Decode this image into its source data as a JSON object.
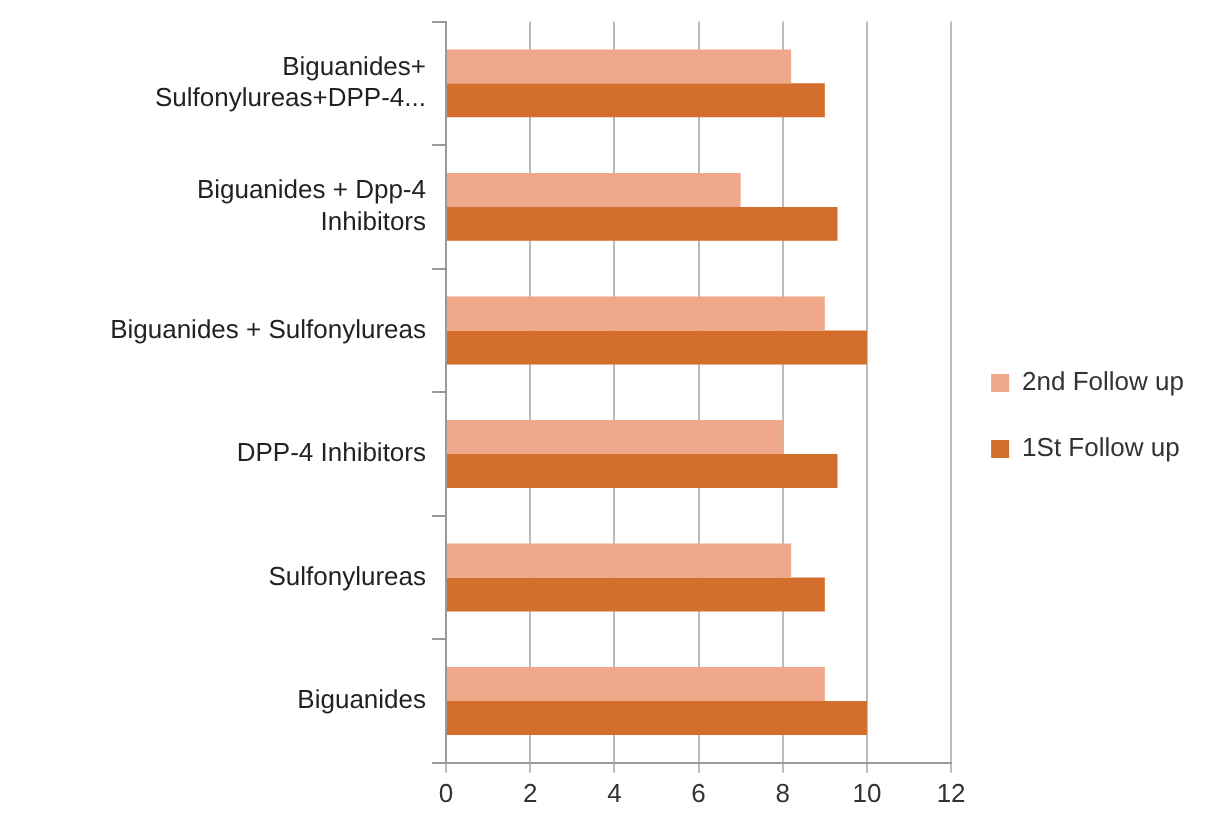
{
  "chart_data": {
    "type": "bar",
    "orientation": "horizontal",
    "categories": [
      "Biguanides+ Sulfonylureas+DPP-4...",
      "Biguanides + Dpp-4 Inhibitors",
      "Biguanides + Sulfonylureas",
      "DPP-4 Inhibitors",
      "Sulfonylureas",
      "Biguanides"
    ],
    "series": [
      {
        "name": "2nd Follow up",
        "color": "#f0a88a",
        "values": [
          8.2,
          7.0,
          9.0,
          8.0,
          8.2,
          9.0
        ]
      },
      {
        "name": "1St Follow up",
        "color": "#d46e2c",
        "values": [
          9.0,
          9.3,
          10,
          9.3,
          9.0,
          10
        ]
      }
    ],
    "xlim": [
      0,
      12
    ],
    "xticks": [
      0,
      2,
      4,
      6,
      8,
      10,
      12
    ],
    "grid": "x",
    "legend": "right"
  }
}
